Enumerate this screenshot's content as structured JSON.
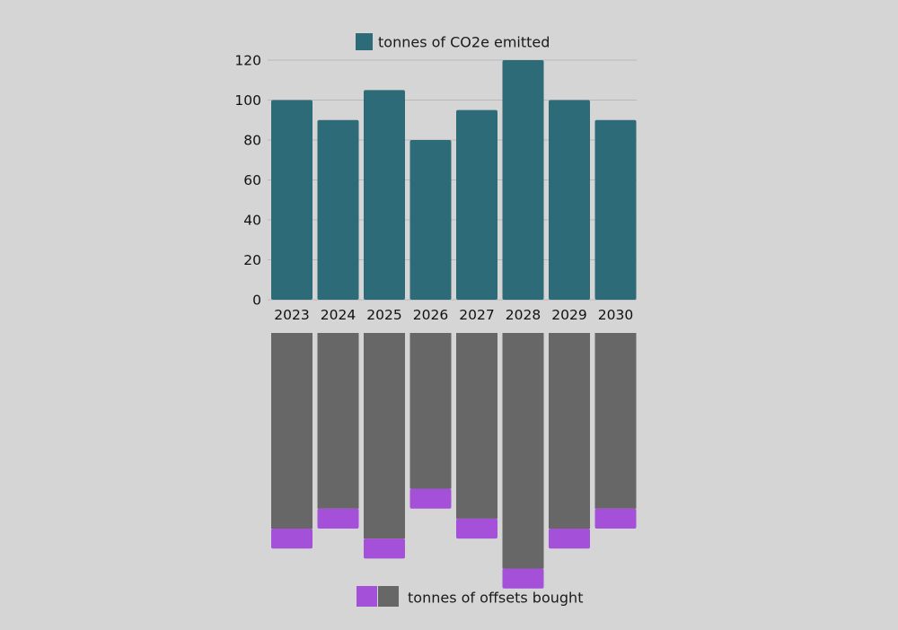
{
  "chart_data": [
    {
      "type": "bar",
      "categories": [
        "2023",
        "2024",
        "2025",
        "2026",
        "2027",
        "2028",
        "2029",
        "2030"
      ],
      "series": [
        {
          "name": "tonnes of CO2e emitted",
          "values": [
            100,
            90,
            105,
            80,
            95,
            120,
            100,
            90
          ]
        }
      ],
      "title": "",
      "xlabel": "",
      "ylabel": "",
      "ylim": [
        0,
        120
      ],
      "yticks": [
        "0",
        "20",
        "40",
        "60",
        "80",
        "100",
        "120"
      ],
      "grid": true,
      "legend": "top-center",
      "colors": [
        "#2e6b78"
      ]
    },
    {
      "type": "bar",
      "orientation": "downward",
      "categories": [
        "2023",
        "2024",
        "2025",
        "2026",
        "2027",
        "2028",
        "2029",
        "2030"
      ],
      "series": [
        {
          "name": "",
          "values": [
            98,
            88,
            103,
            78,
            93,
            118,
            98,
            88
          ],
          "color": "#676767"
        },
        {
          "name": "tonnes of offsets bought",
          "values": [
            10,
            10,
            10,
            10,
            10,
            10,
            10,
            10
          ],
          "color": "#a550d8"
        }
      ],
      "stacked": true,
      "legend": "bottom-center",
      "colors": [
        "#676767",
        "#a550d8"
      ]
    }
  ]
}
